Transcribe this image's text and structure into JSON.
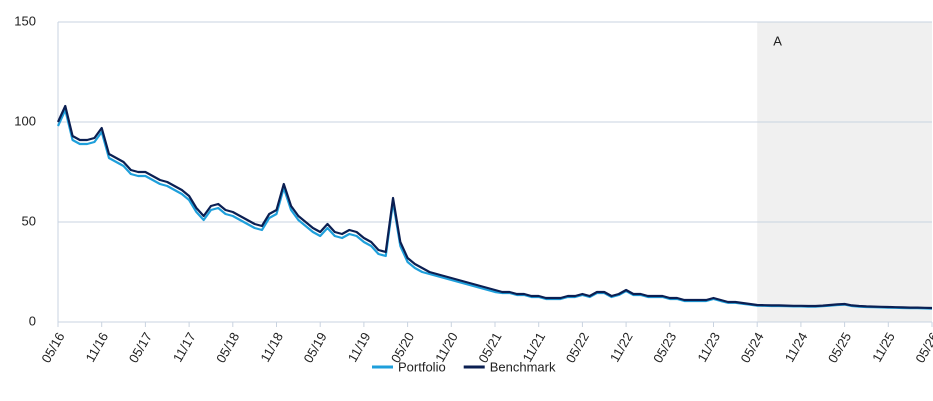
{
  "chart_data": {
    "type": "line",
    "categories": [
      "05/16",
      "06/16",
      "07/16",
      "08/16",
      "09/16",
      "10/16",
      "11/16",
      "12/16",
      "01/17",
      "02/17",
      "03/17",
      "04/17",
      "05/17",
      "06/17",
      "07/17",
      "08/17",
      "09/17",
      "10/17",
      "11/17",
      "12/17",
      "01/18",
      "02/18",
      "03/18",
      "04/18",
      "05/18",
      "06/18",
      "07/18",
      "08/18",
      "09/18",
      "10/18",
      "11/18",
      "12/18",
      "01/19",
      "02/19",
      "03/19",
      "04/19",
      "05/19",
      "06/19",
      "07/19",
      "08/19",
      "09/19",
      "10/19",
      "11/19",
      "12/19",
      "01/20",
      "02/20",
      "03/20",
      "04/20",
      "05/20",
      "06/20",
      "07/20",
      "08/20",
      "09/20",
      "10/20",
      "11/20",
      "12/20",
      "01/21",
      "02/21",
      "03/21",
      "04/21",
      "05/21",
      "06/21",
      "07/21",
      "08/21",
      "09/21",
      "10/21",
      "11/21",
      "12/21",
      "01/22",
      "02/22",
      "03/22",
      "04/22",
      "05/22",
      "06/22",
      "07/22",
      "08/22",
      "09/22",
      "10/22",
      "11/22",
      "12/22",
      "01/23",
      "02/23",
      "03/23",
      "04/23",
      "05/23",
      "06/23",
      "07/23",
      "08/23",
      "09/23",
      "10/23",
      "11/23",
      "12/23",
      "01/24",
      "02/24",
      "03/24",
      "04/24",
      "05/24",
      "06/24",
      "07/24",
      "08/24",
      "09/24",
      "10/24",
      "11/24",
      "12/24",
      "01/25",
      "02/25",
      "03/25",
      "04/25",
      "05/25",
      "06/25",
      "07/25",
      "08/25",
      "09/25",
      "10/25",
      "11/25",
      "12/25",
      "01/26",
      "02/26",
      "03/26",
      "04/26",
      "05/26"
    ],
    "series": [
      {
        "name": "Portfolio",
        "color": "#1e9fdb",
        "values": [
          98,
          106,
          91,
          89,
          89,
          90,
          95,
          82,
          80,
          78,
          74,
          73,
          73,
          71,
          69,
          68,
          66,
          64,
          61,
          55,
          51,
          56,
          57,
          54,
          53,
          51,
          49,
          47,
          46,
          52,
          54,
          67,
          56,
          51,
          48,
          45,
          43,
          47,
          43,
          42,
          44,
          43,
          40,
          38,
          34,
          33,
          60,
          38,
          30,
          27,
          25,
          24,
          23,
          22,
          21,
          20,
          19,
          18,
          17,
          16,
          15,
          14.5,
          14.5,
          13.5,
          13.5,
          12.5,
          12.5,
          11.5,
          11.5,
          11.5,
          12.5,
          12.5,
          13.5,
          12.5,
          14.5,
          14.5,
          12.5,
          13.5,
          15.5,
          13.5,
          13.5,
          12.5,
          12.5,
          12.5,
          11.5,
          11.5,
          10.5,
          10.5,
          10.5,
          10.5,
          11.5,
          10.5,
          9.6,
          9.6,
          9.1,
          8.7,
          8.2,
          8.1,
          8,
          8,
          7.9,
          7.8,
          7.8,
          7.7,
          7.7,
          7.9,
          8.2,
          8.5,
          8.7,
          8,
          7.7,
          7.5,
          7.4,
          7.3,
          7.2,
          7.1,
          7,
          6.9,
          6.9,
          6.8,
          6.7
        ]
      },
      {
        "name": "Benchmark",
        "color": "#0b1f52",
        "values": [
          100,
          108,
          93,
          91,
          91,
          92,
          97,
          84,
          82,
          80,
          76,
          75,
          75,
          73,
          71,
          70,
          68,
          66,
          63,
          57,
          53,
          58,
          59,
          56,
          55,
          53,
          51,
          49,
          48,
          54,
          56,
          69,
          58,
          53,
          50,
          47,
          45,
          49,
          45,
          44,
          46,
          45,
          42,
          40,
          36,
          35,
          62,
          40,
          32,
          29,
          27,
          25,
          24,
          23,
          22,
          21,
          20,
          19,
          18,
          17,
          16,
          15,
          15,
          14,
          14,
          13,
          13,
          12,
          12,
          12,
          13,
          13,
          14,
          13,
          15,
          15,
          13,
          14,
          16,
          14,
          14,
          13,
          13,
          13,
          12,
          12,
          11,
          11,
          11,
          11,
          12,
          11,
          10,
          10,
          9.5,
          9,
          8.5,
          8.4,
          8.3,
          8.3,
          8.2,
          8.1,
          8.1,
          8,
          8,
          8.2,
          8.5,
          8.8,
          9,
          8.3,
          8,
          7.8,
          7.7,
          7.6,
          7.5,
          7.4,
          7.3,
          7.2,
          7.2,
          7.1,
          7
        ]
      }
    ],
    "xticks": [
      "05/16",
      "11/16",
      "05/17",
      "11/17",
      "05/18",
      "11/18",
      "05/19",
      "11/19",
      "05/20",
      "11/20",
      "05/21",
      "11/21",
      "05/22",
      "11/22",
      "05/23",
      "11/23",
      "05/24",
      "11/24",
      "05/25",
      "11/25",
      "05/26"
    ],
    "ylim": [
      0,
      150
    ],
    "yticks": [
      0,
      50,
      100,
      150
    ],
    "grid": true,
    "shaded_region": {
      "from": "05/24",
      "to": "05/26",
      "label": "A"
    },
    "legend": "bottom"
  }
}
